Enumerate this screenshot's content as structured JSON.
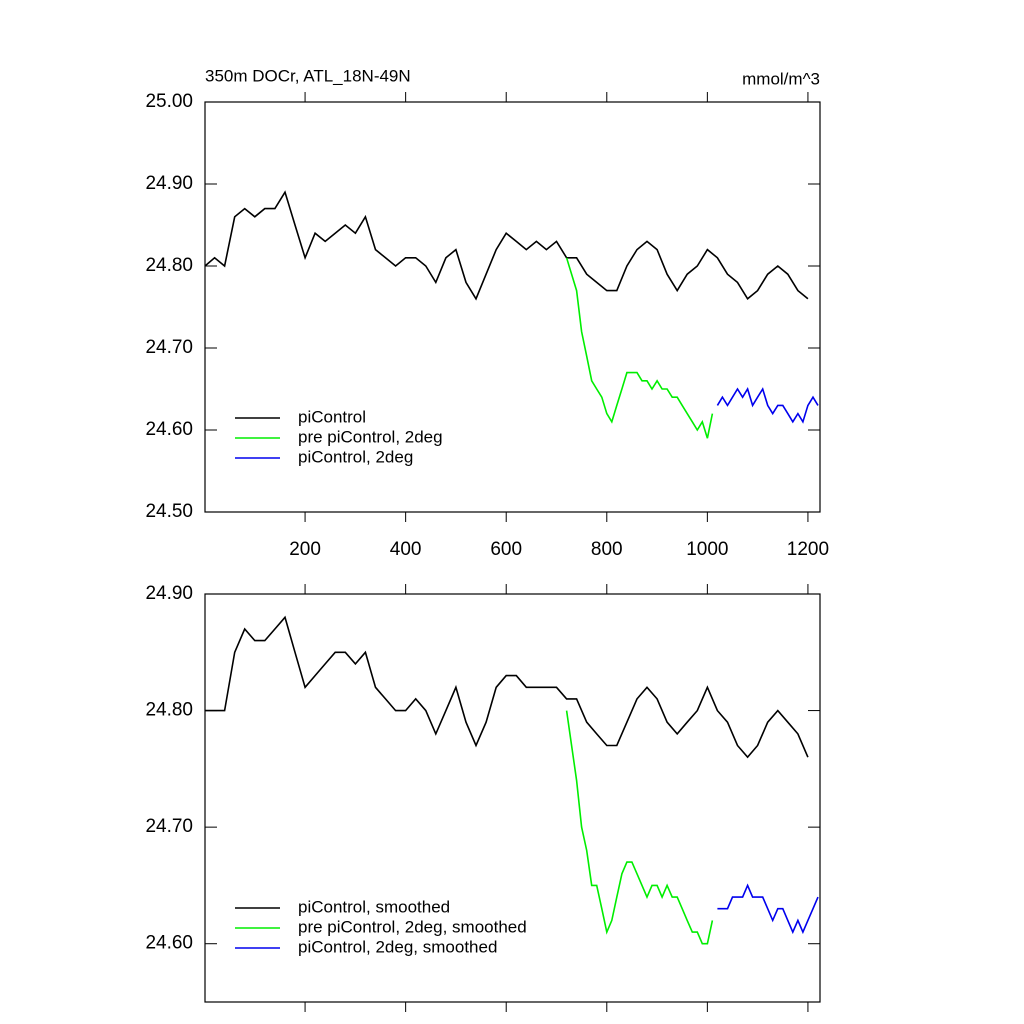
{
  "chart_data": [
    {
      "type": "line",
      "title": "350m DOCr, ATL_18N-49N",
      "units": "mmol/m^3",
      "xlim": [
        1,
        1224
      ],
      "xticks": [
        200,
        400,
        600,
        800,
        1000,
        1200
      ],
      "ylim": [
        24.5,
        25.0
      ],
      "yticks": [
        {
          "value": 24.5,
          "label": "24.50"
        },
        {
          "value": 24.6,
          "label": "24.60"
        },
        {
          "value": 24.7,
          "label": "24.70"
        },
        {
          "value": 24.8,
          "label": "24.80"
        },
        {
          "value": 24.9,
          "label": "24.90"
        },
        {
          "value": 25.0,
          "label": "25.00"
        }
      ],
      "legend": "lower left",
      "series": [
        {
          "name": "piControl",
          "color": "#000000",
          "x": [
            1,
            20,
            40,
            60,
            80,
            100,
            120,
            140,
            160,
            180,
            200,
            220,
            240,
            260,
            280,
            300,
            320,
            340,
            360,
            380,
            400,
            420,
            440,
            460,
            480,
            500,
            520,
            540,
            560,
            580,
            600,
            620,
            640,
            660,
            680,
            700,
            720,
            740,
            760,
            780,
            800,
            820,
            840,
            860,
            880,
            900,
            920,
            940,
            960,
            980,
            1000,
            1020,
            1040,
            1060,
            1080,
            1100,
            1120,
            1140,
            1160,
            1180,
            1200
          ],
          "values": [
            24.8,
            24.81,
            24.8,
            24.86,
            24.87,
            24.86,
            24.87,
            24.87,
            24.89,
            24.85,
            24.81,
            24.84,
            24.83,
            24.84,
            24.85,
            24.84,
            24.86,
            24.82,
            24.81,
            24.8,
            24.81,
            24.81,
            24.8,
            24.78,
            24.81,
            24.82,
            24.78,
            24.76,
            24.79,
            24.82,
            24.84,
            24.83,
            24.82,
            24.83,
            24.82,
            24.83,
            24.81,
            24.81,
            24.79,
            24.78,
            24.77,
            24.77,
            24.8,
            24.82,
            24.83,
            24.82,
            24.79,
            24.77,
            24.79,
            24.8,
            24.82,
            24.81,
            24.79,
            24.78,
            24.76,
            24.77,
            24.79,
            24.8,
            24.79,
            24.77,
            24.76
          ]
        },
        {
          "name": "pre piControl, 2deg",
          "color": "#00ee00",
          "x": [
            720,
            740,
            750,
            760,
            770,
            780,
            790,
            800,
            810,
            820,
            830,
            840,
            850,
            860,
            870,
            880,
            890,
            900,
            910,
            920,
            930,
            940,
            950,
            960,
            970,
            980,
            990,
            1000,
            1010
          ],
          "values": [
            24.81,
            24.77,
            24.72,
            24.69,
            24.66,
            24.65,
            24.64,
            24.62,
            24.61,
            24.63,
            24.65,
            24.67,
            24.67,
            24.67,
            24.66,
            24.66,
            24.65,
            24.66,
            24.65,
            24.65,
            24.64,
            24.64,
            24.63,
            24.62,
            24.61,
            24.6,
            24.61,
            24.59,
            24.62
          ]
        },
        {
          "name": "piControl, 2deg",
          "color": "#0000ee",
          "x": [
            1020,
            1030,
            1040,
            1050,
            1060,
            1070,
            1080,
            1090,
            1100,
            1110,
            1120,
            1130,
            1140,
            1150,
            1160,
            1170,
            1180,
            1190,
            1200,
            1210,
            1220
          ],
          "values": [
            24.63,
            24.64,
            24.63,
            24.64,
            24.65,
            24.64,
            24.65,
            24.63,
            24.64,
            24.65,
            24.63,
            24.62,
            24.63,
            24.63,
            24.62,
            24.61,
            24.62,
            24.61,
            24.63,
            24.64,
            24.63
          ]
        }
      ]
    },
    {
      "type": "line",
      "ylim": [
        24.55,
        24.9
      ],
      "yticks": [
        {
          "value": 24.6,
          "label": "24.60"
        },
        {
          "value": 24.7,
          "label": "24.70"
        },
        {
          "value": 24.8,
          "label": "24.80"
        },
        {
          "value": 24.9,
          "label": "24.90"
        }
      ],
      "legend": "lower left",
      "series": [
        {
          "name": "piControl, smoothed",
          "color": "#000000",
          "x": [
            1,
            20,
            40,
            60,
            80,
            100,
            120,
            140,
            160,
            180,
            200,
            220,
            240,
            260,
            280,
            300,
            320,
            340,
            360,
            380,
            400,
            420,
            440,
            460,
            480,
            500,
            520,
            540,
            560,
            580,
            600,
            620,
            640,
            660,
            680,
            700,
            720,
            740,
            760,
            780,
            800,
            820,
            840,
            860,
            880,
            900,
            920,
            940,
            960,
            980,
            1000,
            1020,
            1040,
            1060,
            1080,
            1100,
            1120,
            1140,
            1160,
            1180,
            1200
          ],
          "values": [
            24.8,
            24.8,
            24.8,
            24.85,
            24.87,
            24.86,
            24.86,
            24.87,
            24.88,
            24.85,
            24.82,
            24.83,
            24.84,
            24.85,
            24.85,
            24.84,
            24.85,
            24.82,
            24.81,
            24.8,
            24.8,
            24.81,
            24.8,
            24.78,
            24.8,
            24.82,
            24.79,
            24.77,
            24.79,
            24.82,
            24.83,
            24.83,
            24.82,
            24.82,
            24.82,
            24.82,
            24.81,
            24.81,
            24.79,
            24.78,
            24.77,
            24.77,
            24.79,
            24.81,
            24.82,
            24.81,
            24.79,
            24.78,
            24.79,
            24.8,
            24.82,
            24.8,
            24.79,
            24.77,
            24.76,
            24.77,
            24.79,
            24.8,
            24.79,
            24.78,
            24.76
          ]
        },
        {
          "name": "pre piControl, 2deg, smoothed",
          "color": "#00ee00",
          "x": [
            720,
            740,
            750,
            760,
            770,
            780,
            790,
            800,
            810,
            820,
            830,
            840,
            850,
            860,
            870,
            880,
            890,
            900,
            910,
            920,
            930,
            940,
            950,
            960,
            970,
            980,
            990,
            1000,
            1010
          ],
          "values": [
            24.8,
            24.74,
            24.7,
            24.68,
            24.65,
            24.65,
            24.63,
            24.61,
            24.62,
            24.64,
            24.66,
            24.67,
            24.67,
            24.66,
            24.65,
            24.64,
            24.65,
            24.65,
            24.64,
            24.65,
            24.64,
            24.64,
            24.63,
            24.62,
            24.61,
            24.61,
            24.6,
            24.6,
            24.62
          ]
        },
        {
          "name": "piControl, 2deg, smoothed",
          "color": "#0000ee",
          "x": [
            1020,
            1030,
            1040,
            1050,
            1060,
            1070,
            1080,
            1090,
            1100,
            1110,
            1120,
            1130,
            1140,
            1150,
            1160,
            1170,
            1180,
            1190,
            1200,
            1210,
            1220
          ],
          "values": [
            24.63,
            24.63,
            24.63,
            24.64,
            24.64,
            24.64,
            24.65,
            24.64,
            24.64,
            24.64,
            24.63,
            24.62,
            24.63,
            24.63,
            24.62,
            24.61,
            24.62,
            24.61,
            24.62,
            24.63,
            24.64
          ]
        }
      ]
    }
  ]
}
